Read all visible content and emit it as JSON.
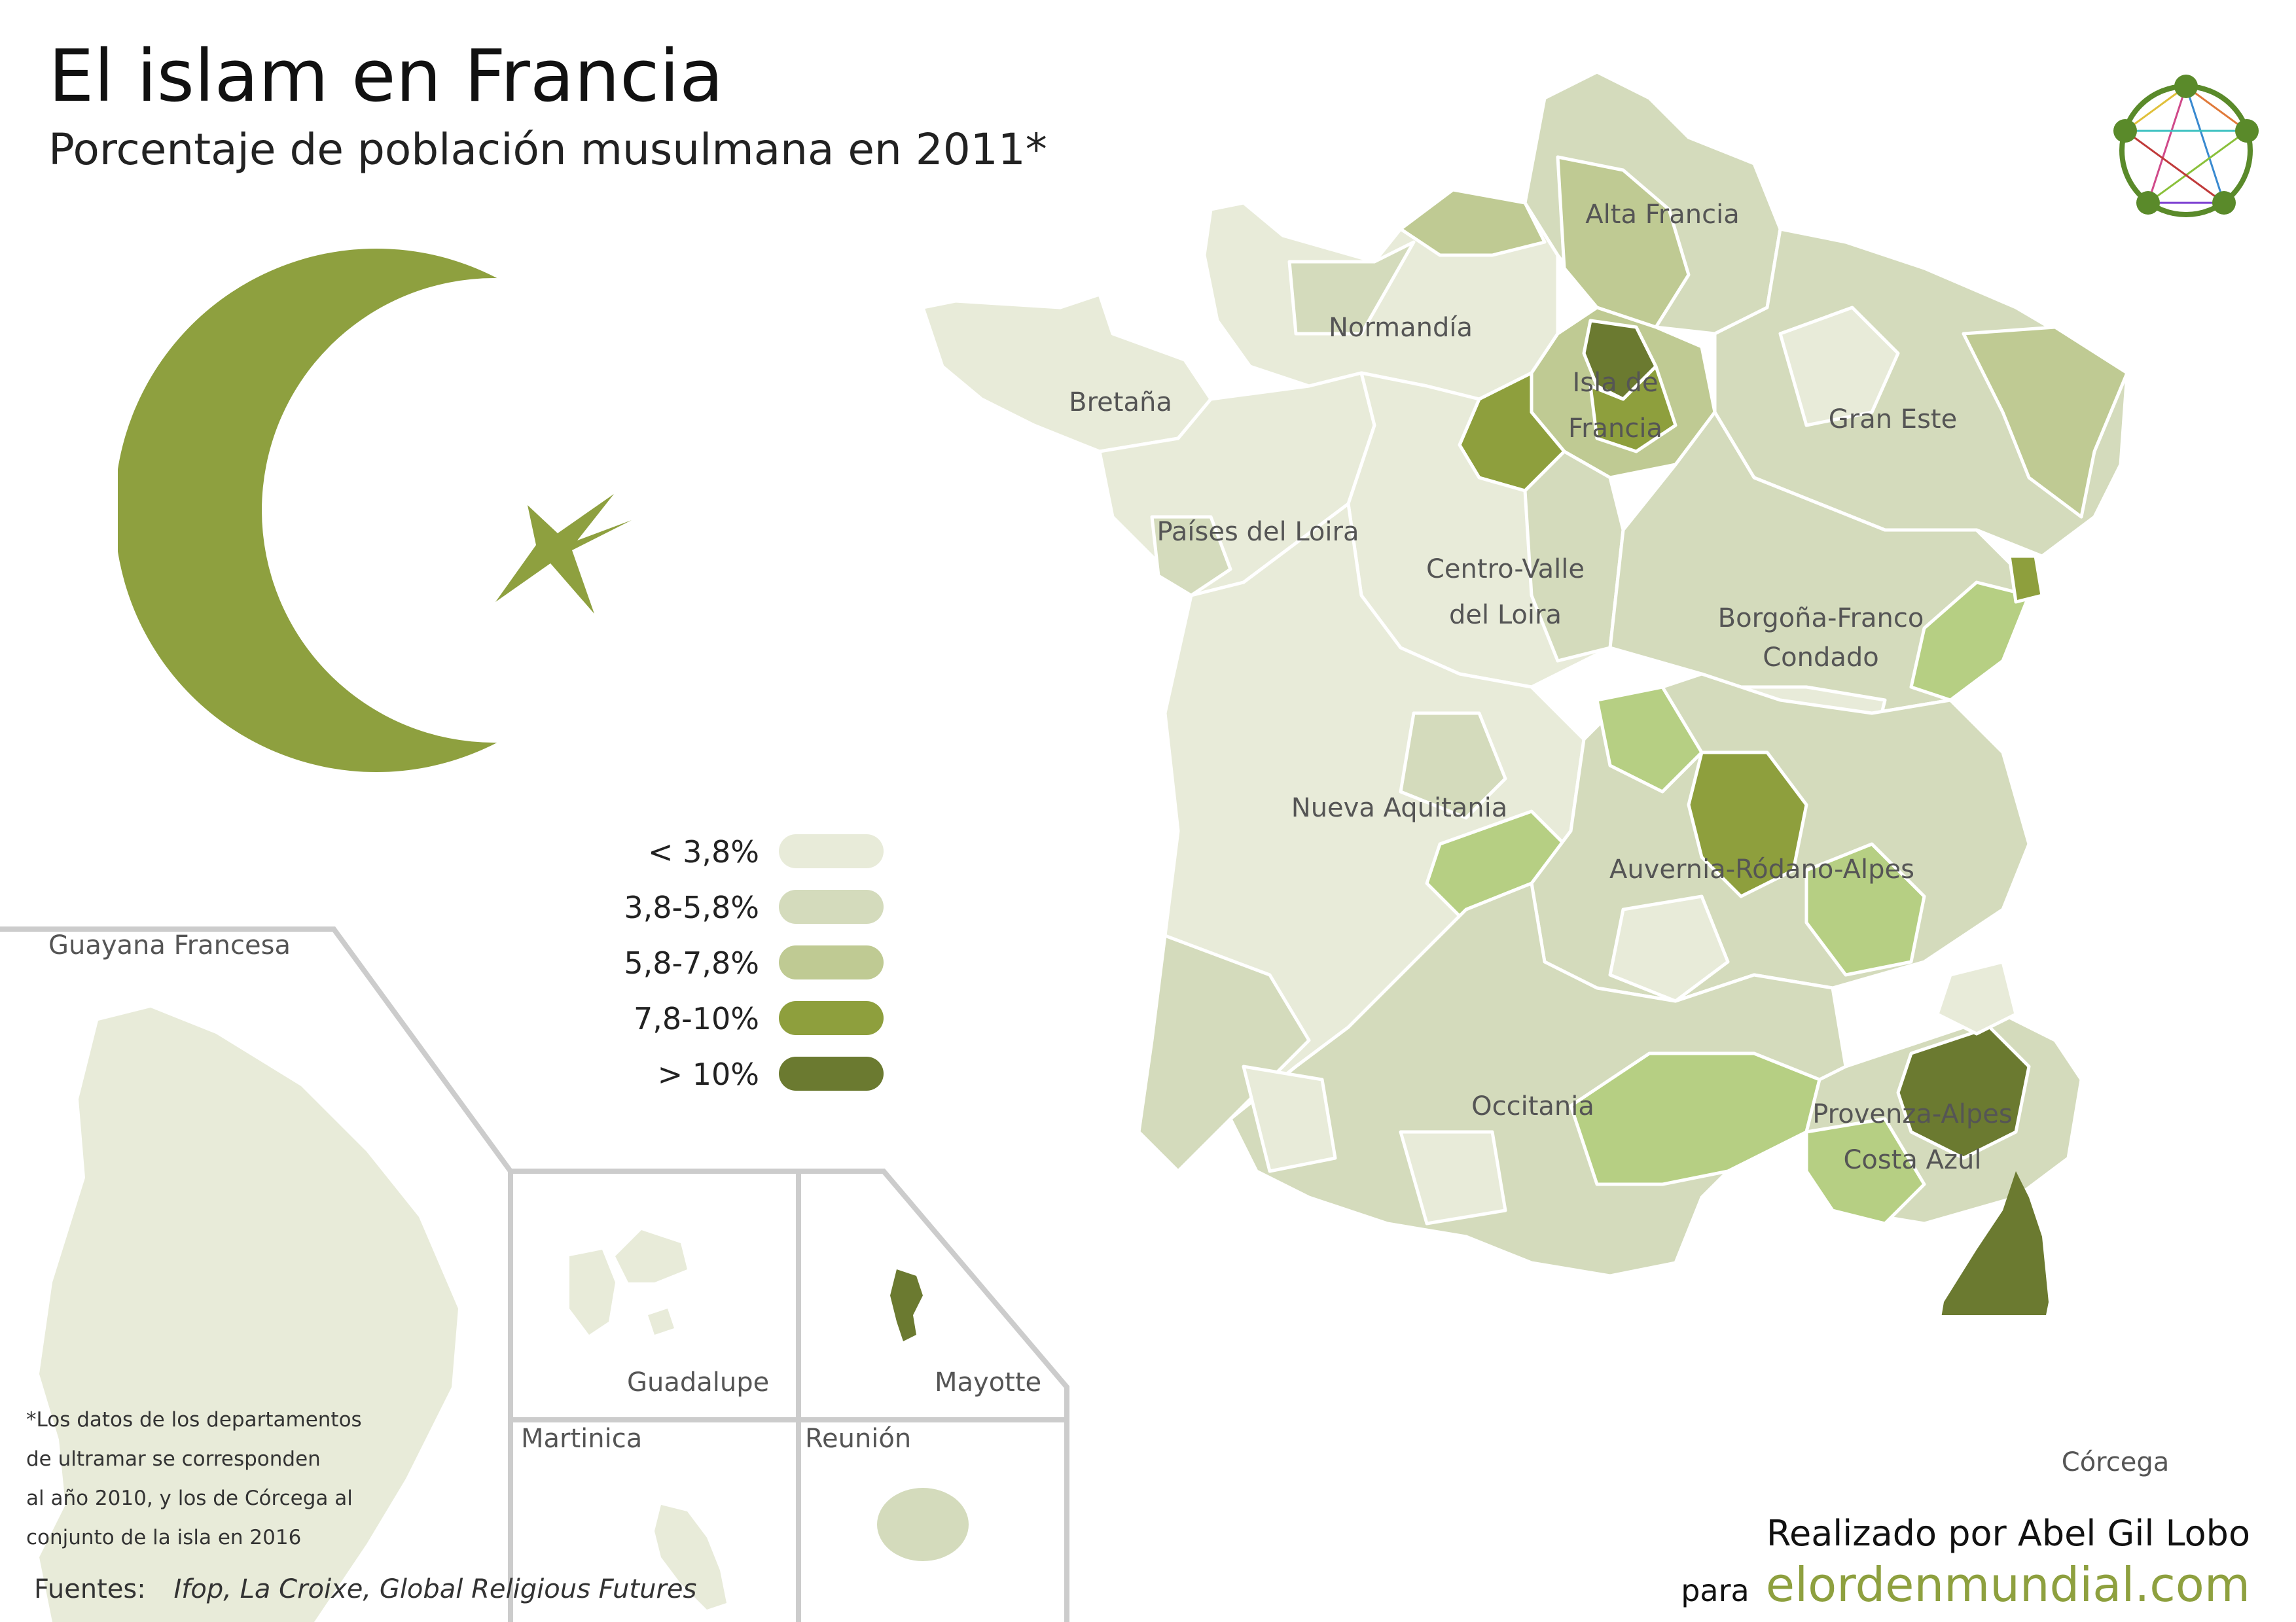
{
  "header": {
    "title": "El islam en Francia",
    "subtitle": "Porcentaje de población musulmana en 2011*"
  },
  "colors": {
    "lt_3_8": "#e8ebd9",
    "3_8_5_8": "#d4dbbc",
    "5_8_7_8": "#bfca93",
    "7_8_10": "#8e9f3d",
    "gt_10": "#6b7a30",
    "light_green": "#b6cf83",
    "emblem": "#8ea03f",
    "border": "#ffffff"
  },
  "legend": {
    "items": [
      {
        "label": "< 3,8%",
        "color": "#e8ebd9"
      },
      {
        "label": "3,8-5,8%",
        "color": "#d4dbbc"
      },
      {
        "label": "5,8-7,8%",
        "color": "#bfca93"
      },
      {
        "label": "7,8-10%",
        "color": "#8e9f3d"
      },
      {
        "label": "> 10%",
        "color": "#6b7a30"
      }
    ]
  },
  "regions": [
    {
      "name": "Alta Francia"
    },
    {
      "name": "Normandía"
    },
    {
      "name": "Bretaña"
    },
    {
      "name": "Isla de Francia"
    },
    {
      "name": "Gran Este"
    },
    {
      "name": "Países del Loira"
    },
    {
      "name": "Centro-Valle del Loira"
    },
    {
      "name": "Borgoña-Franco Condado"
    },
    {
      "name": "Nueva Aquitania"
    },
    {
      "name": "Auvernia-Ródano-Alpes"
    },
    {
      "name": "Occitania"
    },
    {
      "name": "Provenza-Alpes Costa Azul"
    },
    {
      "name": "Córcega"
    }
  ],
  "insets": {
    "guayana": "Guayana Francesa",
    "guadalupe": "Guadalupe",
    "mayotte": "Mayotte",
    "martinica": "Martinica",
    "reunion": "Reunión"
  },
  "note": {
    "line1": "*Los datos de los departamentos",
    "line2": "de ultramar se corresponden",
    "line3": "al año 2010, y los de Córcega  al",
    "line4": "conjunto de la isla en 2016"
  },
  "sources": {
    "label": "Fuentes:",
    "text": "Ifop, La Croixe, Global Religious Futures"
  },
  "credit": {
    "author": "Realizado por Abel Gil Lobo",
    "para": "para",
    "site": "elordenmundial.com"
  },
  "icons": {
    "emblem": "crescent-star-icon",
    "logo": "world-network-logo-icon"
  }
}
